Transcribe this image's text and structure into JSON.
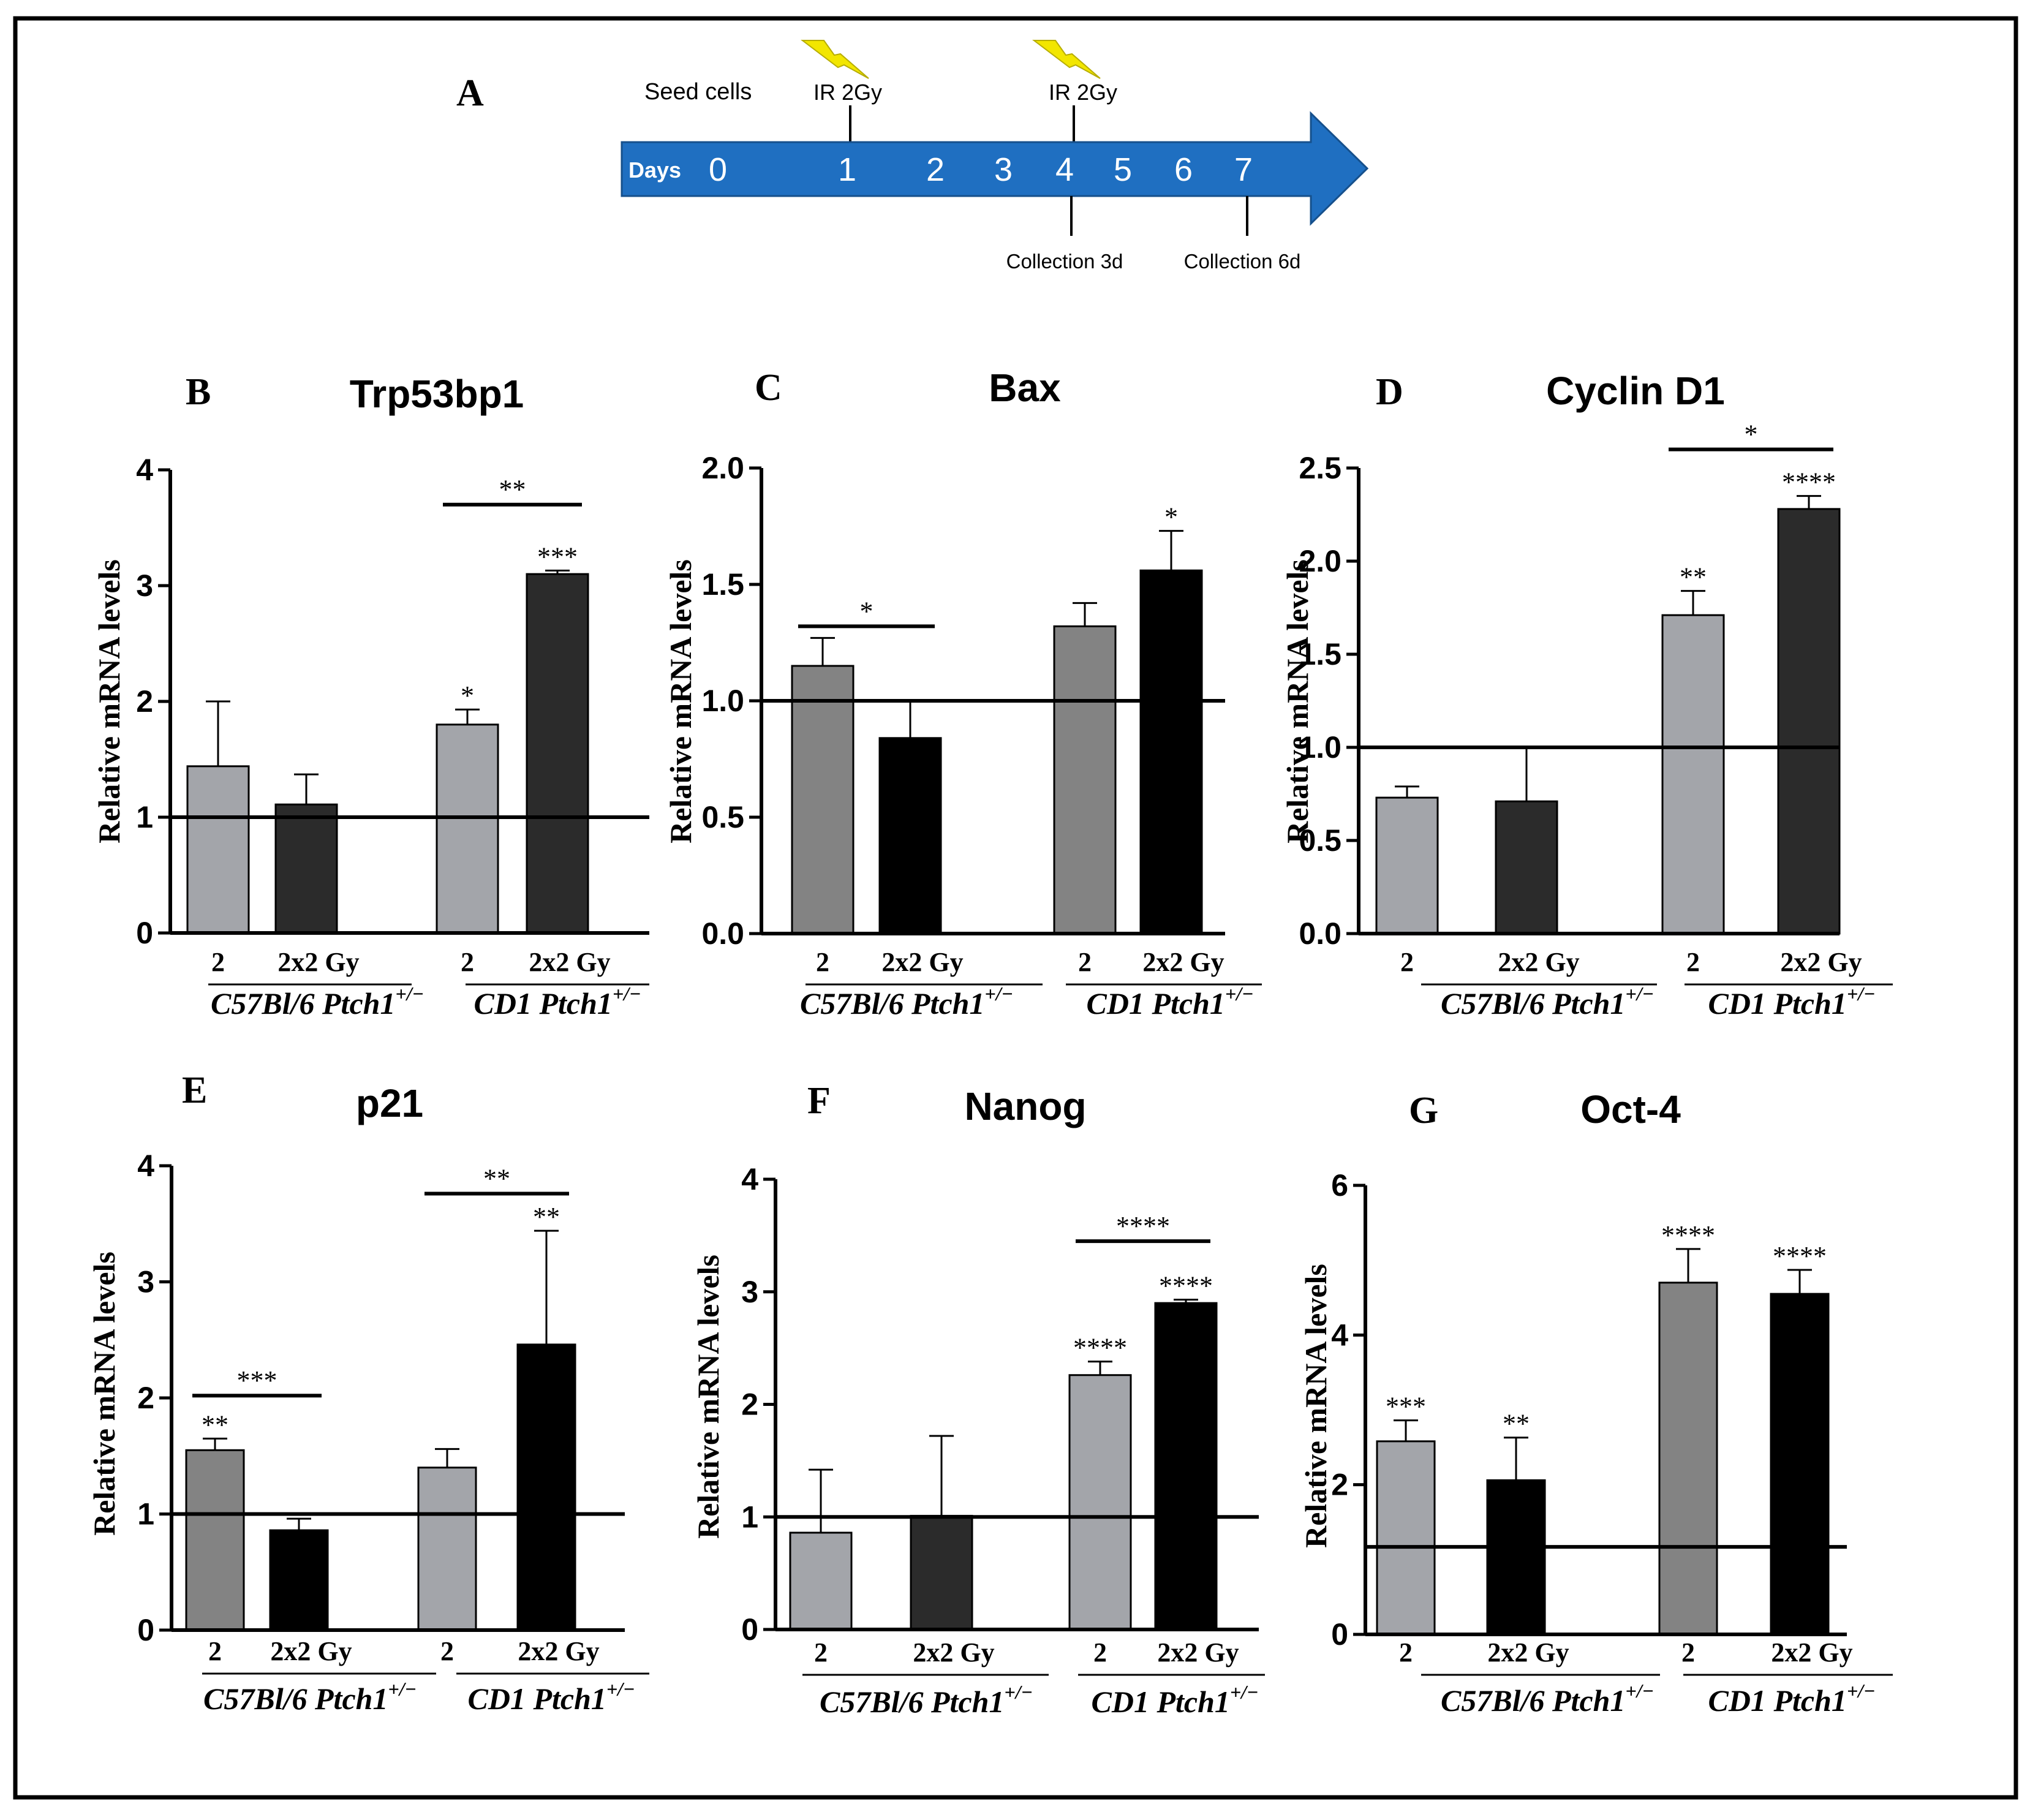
{
  "panel_a": {
    "letter": "A",
    "seed_label": "Seed cells",
    "ir_label_1": "IR 2Gy",
    "ir_label_2": "IR 2Gy",
    "days_label": "Days",
    "day_numbers": [
      "0",
      "1",
      "2",
      "3",
      "4",
      "5",
      "6",
      "7"
    ],
    "collection_3d": "Collection 3d",
    "collection_6d": "Collection 6d",
    "arrow_color": "#1f6fc1",
    "bolt_color": "#f2e600"
  },
  "colors": {
    "light_gray": "#a3a5aa",
    "mid_gray": "#838383",
    "dark": "#2b2b2b",
    "black": "#000000"
  },
  "ylabel": "Relative mRNA levels",
  "chart_data": [
    {
      "letter": "B",
      "title": "Trp53bp1",
      "type": "bar",
      "ylabel": "Relative mRNA levels",
      "categories": [
        "2",
        "2x2 Gy",
        "2",
        "2x2 Gy"
      ],
      "groups": [
        "C57Bl/6 Ptch1",
        "CD1 Ptch1"
      ],
      "group_sup": "+/−",
      "values": [
        1.44,
        1.11,
        1.8,
        3.1
      ],
      "errors": [
        0.56,
        0.26,
        0.13,
        0.03
      ],
      "bar_colors": [
        "#a3a5aa",
        "#2b2b2b",
        "#a3a5aa",
        "#2b2b2b"
      ],
      "ylim": [
        0,
        4
      ],
      "yticks": [
        "0",
        "1",
        "2",
        "3",
        "4"
      ],
      "reference_line": 1,
      "bar_stars": [
        "",
        "",
        "*",
        "***"
      ],
      "brackets": [
        {
          "from": 2,
          "to": 3,
          "y": 3.7,
          "label": "**"
        }
      ]
    },
    {
      "letter": "C",
      "title": "Bax",
      "type": "bar",
      "ylabel": "Relative mRNA levels",
      "categories": [
        "2",
        "2x2 Gy",
        "2",
        "2x2 Gy"
      ],
      "groups": [
        "C57Bl/6 Ptch1",
        "CD1 Ptch1"
      ],
      "group_sup": "+/−",
      "values": [
        1.15,
        0.84,
        1.32,
        1.56
      ],
      "errors": [
        0.12,
        0.16,
        0.1,
        0.17
      ],
      "bar_colors": [
        "#838383",
        "#000000",
        "#838383",
        "#000000"
      ],
      "ylim": [
        0,
        2
      ],
      "yticks": [
        "0.0",
        "0.5",
        "1.0",
        "1.5",
        "2.0"
      ],
      "reference_line": 1,
      "bar_stars": [
        "",
        "",
        "",
        "*"
      ],
      "brackets": [
        {
          "from": 0,
          "to": 1,
          "y": 1.32,
          "label": "*"
        }
      ]
    },
    {
      "letter": "D",
      "title": "Cyclin D1",
      "type": "bar",
      "ylabel": "Relative mRNA levels",
      "categories": [
        "2",
        "2x2 Gy",
        "2",
        "2x2 Gy"
      ],
      "groups": [
        "C57Bl/6 Ptch1",
        "CD1 Ptch1"
      ],
      "group_sup": "+/−",
      "values": [
        0.73,
        0.71,
        1.71,
        2.28
      ],
      "errors": [
        0.06,
        0.29,
        0.13,
        0.07
      ],
      "bar_colors": [
        "#a3a5aa",
        "#2b2b2b",
        "#a3a5aa",
        "#2b2b2b"
      ],
      "ylim": [
        0,
        2.5
      ],
      "yticks": [
        "0.0",
        "0.5",
        "1.0",
        "1.5",
        "2.0",
        "2.5"
      ],
      "reference_line": 1,
      "bar_stars": [
        "",
        "",
        "**",
        "****"
      ],
      "brackets": [
        {
          "from": 2,
          "to": 3,
          "y": 2.6,
          "label": "*"
        }
      ]
    },
    {
      "letter": "E",
      "title": "p21",
      "type": "bar",
      "ylabel": "Relative mRNA levels",
      "categories": [
        "2",
        "2x2 Gy",
        "2",
        "2x2 Gy"
      ],
      "groups": [
        "C57Bl/6 Ptch1",
        "CD1 Ptch1"
      ],
      "group_sup": "+/−",
      "values": [
        1.55,
        0.86,
        1.4,
        2.46
      ],
      "errors": [
        0.1,
        0.1,
        0.16,
        0.98
      ],
      "bar_colors": [
        "#838383",
        "#000000",
        "#a3a5aa",
        "#000000"
      ],
      "ylim": [
        0,
        4
      ],
      "yticks": [
        "0",
        "1",
        "2",
        "3",
        "4"
      ],
      "reference_line": 1,
      "bar_stars": [
        "**",
        "",
        "",
        "**"
      ],
      "brackets": [
        {
          "from": 0,
          "to": 1,
          "y": 2.02,
          "label": "***"
        },
        {
          "from": 2,
          "to": 3,
          "y": 3.76,
          "label": "**"
        }
      ]
    },
    {
      "letter": "F",
      "title": "Nanog",
      "type": "bar",
      "ylabel": "Relative mRNA levels",
      "categories": [
        "2",
        "2x2 Gy",
        "2",
        "2x2 Gy"
      ],
      "groups": [
        "C57Bl/6 Ptch1",
        "CD1 Ptch1"
      ],
      "group_sup": "+/−",
      "values": [
        0.86,
        1.01,
        2.26,
        2.9
      ],
      "errors": [
        0.56,
        0.71,
        0.12,
        0.03
      ],
      "bar_colors": [
        "#a3a5aa",
        "#2b2b2b",
        "#a3a5aa",
        "#000000"
      ],
      "ylim": [
        0,
        4
      ],
      "yticks": [
        "0",
        "1",
        "2",
        "3",
        "4"
      ],
      "reference_line": 1,
      "bar_stars": [
        "",
        "",
        "****",
        "****"
      ],
      "brackets": [
        {
          "from": 2,
          "to": 3,
          "y": 3.45,
          "label": "****"
        }
      ]
    },
    {
      "letter": "G",
      "title": "Oct-4",
      "type": "bar",
      "ylabel": "Relative mRNA levels",
      "categories": [
        "2",
        "2x2 Gy",
        "2",
        "2x2 Gy"
      ],
      "groups": [
        "C57Bl/6 Ptch1",
        "CD1 Ptch1"
      ],
      "group_sup": "+/−",
      "values": [
        2.58,
        2.06,
        4.7,
        4.55
      ],
      "errors": [
        0.28,
        0.57,
        0.45,
        0.32
      ],
      "bar_colors": [
        "#a3a5aa",
        "#000000",
        "#838383",
        "#000000"
      ],
      "ylim": [
        0,
        6
      ],
      "yticks": [
        "0",
        "2",
        "4",
        "6"
      ],
      "reference_line": 1.17,
      "bar_stars": [
        "***",
        "**",
        "****",
        "****"
      ],
      "brackets": []
    }
  ]
}
